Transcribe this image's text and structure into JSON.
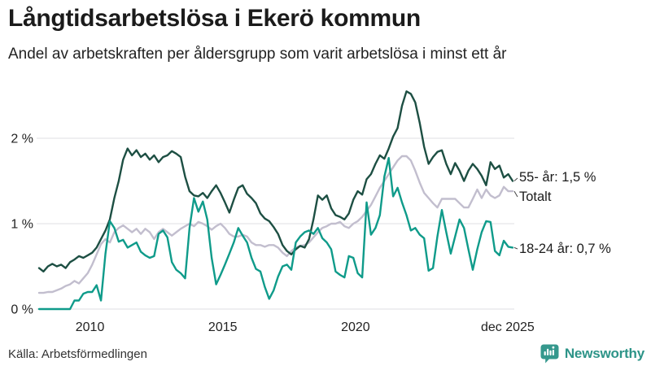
{
  "header": {
    "title": "Långtidsarbetslösa i Ekerö kommun",
    "subtitle": "Andel av arbetskraften per åldersgrupp som varit arbetslösa i minst ett år"
  },
  "chart_data": {
    "type": "line",
    "title": "Långtidsarbetslösa i Ekerö kommun",
    "xlabel": "",
    "ylabel": "Andel av arbetskraften (%)",
    "grid": "horizontal",
    "legend_position": "end-of-line labels",
    "ylim": [
      0,
      2.6
    ],
    "x_start_year": 2008.083,
    "x_end_year": 2025.917,
    "x_step_years": 0.1667,
    "x_ticks": [
      {
        "label": "2010",
        "year": 2010
      },
      {
        "label": "2015",
        "year": 2015
      },
      {
        "label": "2020",
        "year": 2020
      },
      {
        "label": "dec 2025",
        "year": 2025.73
      }
    ],
    "y_ticks": [
      {
        "label": "0 %",
        "value": 0
      },
      {
        "label": "1 %",
        "value": 1
      },
      {
        "label": "2 %",
        "value": 2
      }
    ],
    "series": [
      {
        "id": "55",
        "name": "55- år",
        "end_label": "55- år: 1,5 %",
        "end_value_text": "1,5 %",
        "color": "#1d4f43",
        "values": [
          0.48,
          0.44,
          0.5,
          0.53,
          0.5,
          0.52,
          0.48,
          0.55,
          0.58,
          0.62,
          0.6,
          0.63,
          0.66,
          0.72,
          0.82,
          0.92,
          1.05,
          1.3,
          1.5,
          1.75,
          1.88,
          1.8,
          1.86,
          1.78,
          1.82,
          1.75,
          1.8,
          1.72,
          1.78,
          1.8,
          1.85,
          1.82,
          1.78,
          1.55,
          1.38,
          1.33,
          1.32,
          1.36,
          1.3,
          1.38,
          1.45,
          1.36,
          1.25,
          1.13,
          1.28,
          1.42,
          1.45,
          1.35,
          1.3,
          1.24,
          1.12,
          1.06,
          1.03,
          0.96,
          0.88,
          0.75,
          0.68,
          0.64,
          0.7,
          0.74,
          0.72,
          0.82,
          1.05,
          1.33,
          1.28,
          1.33,
          1.18,
          1.1,
          1.08,
          1.05,
          1.12,
          1.28,
          1.38,
          1.34,
          1.52,
          1.58,
          1.7,
          1.8,
          1.76,
          1.88,
          2.02,
          2.12,
          2.38,
          2.55,
          2.52,
          2.42,
          2.18,
          1.9,
          1.7,
          1.78,
          1.84,
          1.86,
          1.7,
          1.58,
          1.71,
          1.62,
          1.5,
          1.62,
          1.7,
          1.64,
          1.56,
          1.45,
          1.72,
          1.64,
          1.68,
          1.54,
          1.58,
          1.5
        ]
      },
      {
        "id": "totalt",
        "name": "Totalt",
        "end_label": "Totalt",
        "end_value_text": "",
        "color": "#c2bece",
        "values": [
          0.19,
          0.19,
          0.2,
          0.2,
          0.22,
          0.24,
          0.27,
          0.29,
          0.33,
          0.3,
          0.36,
          0.42,
          0.52,
          0.64,
          0.76,
          0.82,
          0.78,
          0.9,
          0.95,
          0.98,
          0.94,
          0.9,
          0.94,
          0.88,
          0.94,
          0.9,
          0.82,
          0.9,
          0.94,
          0.9,
          0.86,
          0.9,
          0.94,
          0.97,
          1.0,
          0.97,
          1.02,
          1.0,
          0.97,
          0.93,
          0.97,
          1.0,
          0.95,
          0.88,
          0.85,
          0.85,
          0.87,
          0.85,
          0.78,
          0.75,
          0.75,
          0.73,
          0.75,
          0.75,
          0.72,
          0.66,
          0.62,
          0.68,
          0.72,
          0.74,
          0.75,
          0.78,
          0.84,
          0.9,
          0.95,
          0.97,
          1.0,
          1.0,
          1.02,
          0.97,
          0.95,
          1.0,
          1.03,
          1.08,
          1.15,
          1.22,
          1.32,
          1.42,
          1.5,
          1.58,
          1.66,
          1.74,
          1.79,
          1.79,
          1.74,
          1.62,
          1.48,
          1.36,
          1.3,
          1.24,
          1.19,
          1.29,
          1.29,
          1.29,
          1.29,
          1.24,
          1.19,
          1.19,
          1.29,
          1.4,
          1.3,
          1.4,
          1.33,
          1.3,
          1.33,
          1.43,
          1.38,
          1.38
        ]
      },
      {
        "id": "18-24",
        "name": "18-24 år",
        "end_label": "18-24 år: 0,7 %",
        "end_value_text": "0,7 %",
        "color": "#0f9b8a",
        "values": [
          0.0,
          0.0,
          0.0,
          0.0,
          0.0,
          0.0,
          0.0,
          0.0,
          0.1,
          0.1,
          0.18,
          0.2,
          0.2,
          0.28,
          0.1,
          0.65,
          1.03,
          0.95,
          0.79,
          0.81,
          0.72,
          0.75,
          0.78,
          0.67,
          0.63,
          0.6,
          0.62,
          0.88,
          0.92,
          0.84,
          0.55,
          0.46,
          0.42,
          0.36,
          0.95,
          1.3,
          1.14,
          1.26,
          1.05,
          0.6,
          0.29,
          0.4,
          0.52,
          0.65,
          0.78,
          0.95,
          0.86,
          0.78,
          0.6,
          0.47,
          0.44,
          0.26,
          0.12,
          0.22,
          0.38,
          0.5,
          0.52,
          0.46,
          0.78,
          0.85,
          0.9,
          0.92,
          0.88,
          0.95,
          0.83,
          0.78,
          0.7,
          0.44,
          0.4,
          0.37,
          0.62,
          0.6,
          0.42,
          0.37,
          1.25,
          0.87,
          0.95,
          1.1,
          1.55,
          1.77,
          1.32,
          1.42,
          1.25,
          1.1,
          0.92,
          0.95,
          0.87,
          0.83,
          0.45,
          0.48,
          0.85,
          1.16,
          0.9,
          0.65,
          0.85,
          1.05,
          0.95,
          0.7,
          0.46,
          0.7,
          0.9,
          1.03,
          1.02,
          0.68,
          0.63,
          0.8,
          0.73,
          0.72
        ]
      }
    ]
  },
  "annotations": {
    "label_55": "55- år: 1,5 %",
    "label_total": "Totalt",
    "label_1824": "18-24 år: 0,7 %"
  },
  "footer": {
    "source": "Källa: Arbetsförmedlingen",
    "brand": "Newsworthy"
  },
  "colors": {
    "series_55": "#1d4f43",
    "series_totalt": "#c2bece",
    "series_18_24": "#0f9b8a",
    "grid": "#dfdfe3",
    "axis_text": "#222222",
    "connector": "#444444",
    "brand_teal": "#2d9488",
    "brand_icon": "#35988d",
    "title_text": "#1b1b1b"
  }
}
